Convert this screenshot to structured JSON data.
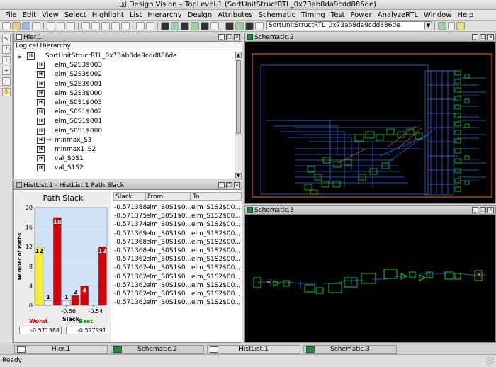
{
  "window": {
    "title": "Design Vision – TopLevel.1 (SortUnitStructRTL_0x73ab8da9cdd886de)"
  },
  "menu": [
    "File",
    "Edit",
    "View",
    "Select",
    "Highlight",
    "List",
    "Hierarchy",
    "Design",
    "Attributes",
    "Schematic",
    "Timing",
    "Test",
    "Power",
    "AnalyzeRTL",
    "Window",
    "Help"
  ],
  "toolbar": {
    "design_select": "SortUnitStructRTL_0x73ab8da9cdd886de"
  },
  "hier": {
    "title": "Hier.1",
    "header": "Logical Hierarchy",
    "root": "SortUnitStructRTL_0x73ab8da9cdd886de",
    "items": [
      "elm_S2S3$003",
      "elm_S2S3$002",
      "elm_S2S3$001",
      "elm_S2S3$000",
      "elm_S0S1$003",
      "elm_S0S1$002",
      "elm_S0S1$001",
      "elm_S0S1$000",
      "minmax_S3",
      "minmax1_S2",
      "val_S0S1",
      "val_S1S2"
    ],
    "icon_letter": "H"
  },
  "schematic2": {
    "title": "Schematic.2"
  },
  "schematic3": {
    "title": "Schematic.3"
  },
  "histlist": {
    "title": "HistList.1 - HistList.1   Path Slack",
    "chart_title": "Path Slack",
    "worst_label": "Worst",
    "best_label": "Best",
    "worst_value": "-0.571388",
    "best_value": "-0.527991",
    "table": {
      "headers": [
        "Slack",
        "From",
        "To"
      ],
      "rows": [
        [
          "-0.571388",
          "elm_S0S1$0...",
          "elm_S1S2$00..."
        ],
        [
          "-0.571375",
          "elm_S0S1$0...",
          "elm_S1S2$00..."
        ],
        [
          "-0.571374",
          "elm_S0S1$0...",
          "elm_S1S2$00..."
        ],
        [
          "-0.571369",
          "elm_S0S1$0...",
          "elm_S1S2$00..."
        ],
        [
          "-0.571368",
          "elm_S0S1$0...",
          "elm_S1S2$00..."
        ],
        [
          "-0.571368",
          "elm_S0S1$0...",
          "elm_S1S2$00..."
        ],
        [
          "-0.571362",
          "elm_S0S1$0...",
          "elm_S1S2$00..."
        ],
        [
          "-0.571362",
          "elm_S0S1$0...",
          "elm_S1S2$00..."
        ],
        [
          "-0.571362",
          "elm_S0S1$0...",
          "elm_S1S2$00..."
        ],
        [
          "-0.571362",
          "elm_S0S1$0...",
          "elm_S1S2$00..."
        ],
        [
          "-0.571362",
          "elm_S0S1$0...",
          "elm_S1S2$00..."
        ],
        [
          "-0.571362",
          "elm_S0S1$0...",
          "elm_S1S2$00..."
        ]
      ]
    }
  },
  "chart_data": {
    "type": "bar",
    "title": "Path Slack",
    "xlabel": "Slack",
    "ylabel": "Number of Paths",
    "ylim": [
      0,
      20
    ],
    "yticks": [
      0,
      4,
      8,
      12,
      16,
      20
    ],
    "xticks": [
      "-0.56",
      "-0.54"
    ],
    "values": [
      12,
      1,
      18,
      1,
      2,
      4,
      0,
      12
    ],
    "colors": [
      "#f4ee2e",
      "#e8e8e8",
      "#d40000",
      "#e8e8e8",
      "#d40000",
      "#d40000",
      "#e8e8e8",
      "#d40000"
    ],
    "grid": true
  },
  "taskbar": [
    "Hier.1",
    "Schematic.2",
    "HistList.1",
    "Schematic.3"
  ],
  "status": "Ready",
  "colors": {
    "schematic_bg": "#000000",
    "wire": "#2a6cff",
    "cell": "#18d018",
    "border": "#e05a00"
  }
}
